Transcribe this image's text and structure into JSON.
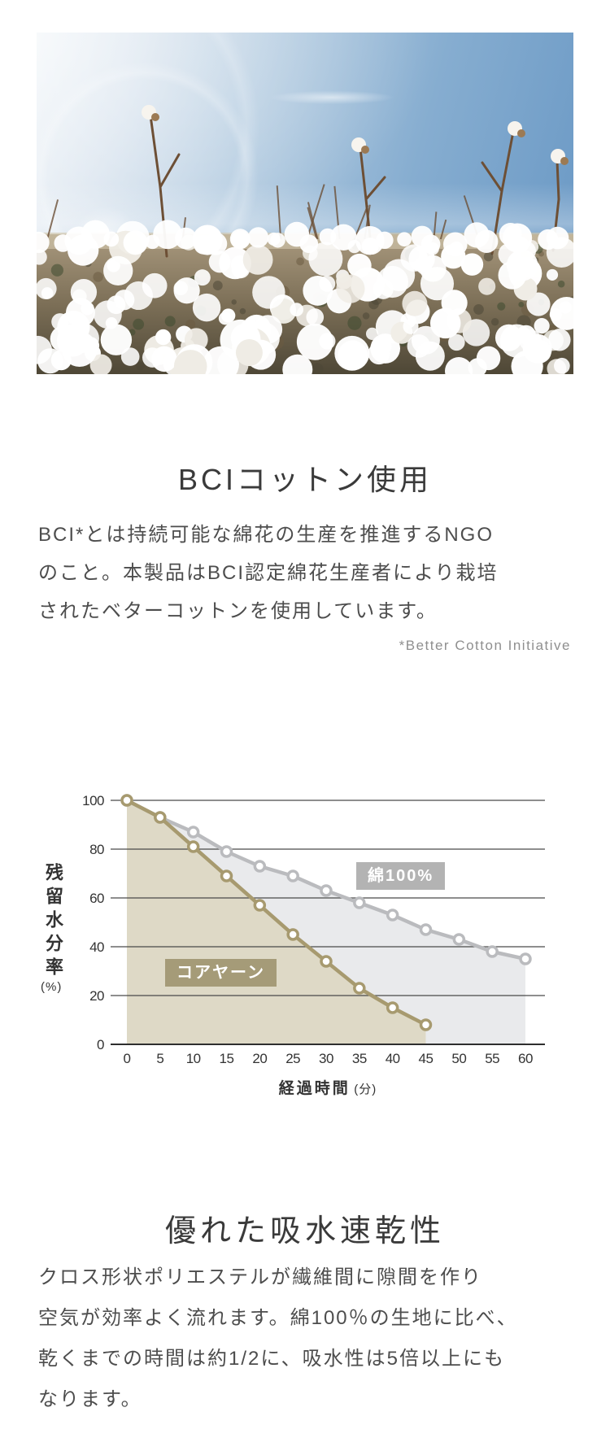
{
  "hero": {
    "description": "Cotton field under a blue sky"
  },
  "section_bci": {
    "title": "BCIコットン使用",
    "body_lines": [
      "BCI*とは持続可能な綿花の生産を推進するNGO",
      "のこと。本製品はBCI認定綿花生産者により栽培",
      "されたベターコットンを使用しています。"
    ],
    "note": "*Better Cotton Initiative"
  },
  "chart_data": {
    "type": "line",
    "title": "",
    "xlabel": "経過時間",
    "xlabel_unit": "(分)",
    "ylabel": "残留水分率",
    "ylabel_unit": "(%)",
    "xlim": [
      0,
      60
    ],
    "ylim": [
      0,
      100
    ],
    "xticks": [
      0,
      5,
      10,
      15,
      20,
      25,
      30,
      35,
      40,
      45,
      50,
      55,
      60
    ],
    "yticks": [
      0,
      20,
      40,
      60,
      80,
      100
    ],
    "grid": "horizontal",
    "legend_position": "inline-labels",
    "series": [
      {
        "name": "綿100%",
        "x": [
          0,
          5,
          10,
          15,
          20,
          25,
          30,
          35,
          40,
          45,
          50,
          55,
          60
        ],
        "values": [
          100,
          93,
          87,
          79,
          73,
          69,
          63,
          58,
          53,
          47,
          43,
          38,
          35
        ],
        "line_color": "#babbbe",
        "fill_color": "#e9eaec",
        "label_bg": "#b3b3b3"
      },
      {
        "name": "コアヤーン",
        "x": [
          0,
          5,
          10,
          15,
          20,
          25,
          30,
          35,
          40,
          45
        ],
        "values": [
          100,
          93,
          81,
          69,
          57,
          45,
          34,
          23,
          15,
          8
        ],
        "line_color": "#a79a6f",
        "fill_color": "#ded9c6",
        "label_bg": "#a59b78"
      }
    ],
    "colors": {
      "grid": "#4a4a4a",
      "axis": "#2e2e2e",
      "tick_text": "#333333"
    }
  },
  "section_dry": {
    "title": "優れた吸水速乾性",
    "body_lines": [
      "クロス形状ポリエステルが繊維間に隙間を作り",
      "空気が効率よく流れます。綿100％の生地に比べ、",
      "乾くまでの時間は約1/2に、吸水性は5倍以上にも",
      "なります。"
    ]
  }
}
